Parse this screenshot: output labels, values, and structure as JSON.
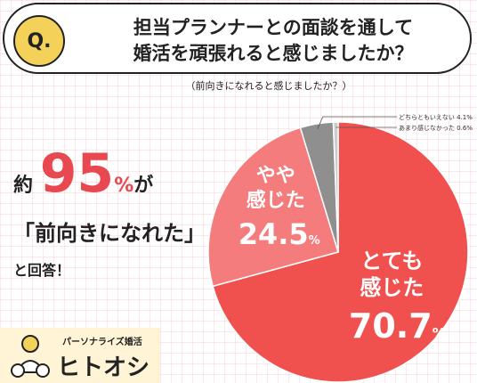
{
  "question": {
    "badge": "Q.",
    "line1": "担当プランナーとの面談を通して",
    "line2": "婚活を頑張れると感じましたか？",
    "sub": "（前向きになれると感じましたか？）"
  },
  "highlight": {
    "prefix": "約",
    "number": "95",
    "unit": "%",
    "suffix": "が",
    "quote": "「前向きになれた」",
    "tail": "と回答！"
  },
  "brand": {
    "tagline": "パーソナライズ婚活",
    "name": "ヒトオシ",
    "icon": "person-mascot-icon"
  },
  "colors": {
    "very": "#f0514f",
    "somewhat": "#f47c7c",
    "not_sure": "#8f8f8f",
    "not_really": "#cccccc"
  },
  "chart_data": {
    "type": "pie",
    "title": "",
    "slices": [
      {
        "label_lines": [
          "とても",
          "感じた"
        ],
        "value": 70.7,
        "value_text": "70.7",
        "unit": "%"
      },
      {
        "label_lines": [
          "やや",
          "感じた"
        ],
        "value": 24.5,
        "value_text": "24.5",
        "unit": "%"
      },
      {
        "label": "どちらともいえない",
        "value": 4.1,
        "value_text": "4.1%"
      },
      {
        "label": "あまり感じなかった",
        "value": 0.6,
        "value_text": "0.6%"
      }
    ],
    "start_angle": "top",
    "direction": "clockwise"
  }
}
